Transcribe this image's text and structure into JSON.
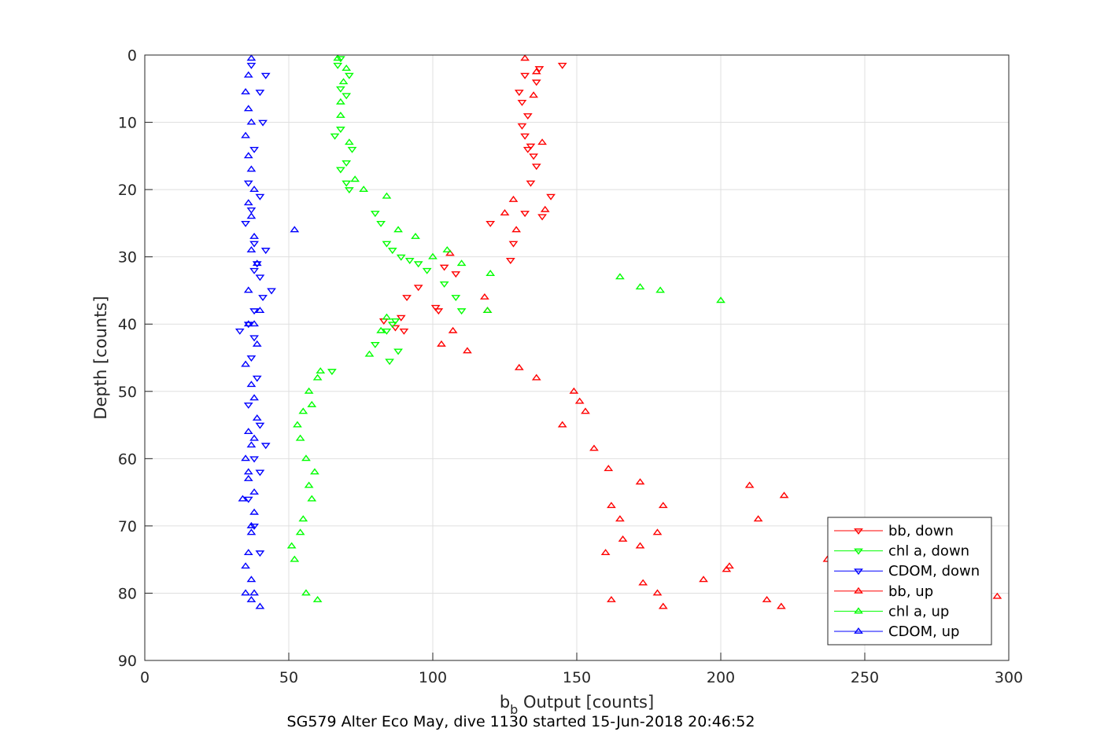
{
  "chart_data": {
    "type": "scatter",
    "xlabel": "b",
    "xlabel_sub": "b",
    "xlabel_rest": " Output [counts]",
    "ylabel": "Depth [counts]",
    "caption": "SG579 Alter Eco May, dive 1130 started 15-Jun-2018 20:46:52",
    "xlim": [
      0,
      300
    ],
    "ylim": [
      0,
      90
    ],
    "y_reversed": true,
    "grid": true,
    "legend_position": "bottom-right",
    "xticks": [
      "0",
      "50",
      "100",
      "150",
      "200",
      "250",
      "300"
    ],
    "yticks": [
      "0",
      "10",
      "20",
      "30",
      "40",
      "50",
      "60",
      "70",
      "80",
      "90"
    ],
    "colors": {
      "red": "#ff0000",
      "green": "#00ff00",
      "blue": "#0000ff"
    },
    "series": [
      {
        "name": "bb, down",
        "color": "#ff0000",
        "marker": "triangle-down",
        "x": [
          145,
          132,
          137,
          136,
          130,
          131,
          133,
          131,
          132,
          134,
          133,
          135,
          136,
          134,
          141,
          132,
          138,
          120,
          128,
          127,
          104,
          108,
          95,
          91,
          101,
          102,
          89,
          83,
          87,
          90
        ],
        "y": [
          1.5,
          3,
          2,
          4,
          5.5,
          7,
          9,
          10.5,
          12,
          13.5,
          14,
          15,
          16.5,
          19,
          21,
          23.5,
          24,
          25,
          28,
          30.5,
          31.5,
          32.5,
          34.5,
          36,
          37.5,
          38,
          39,
          39.5,
          40.5,
          41
        ]
      },
      {
        "name": "chl a, down",
        "color": "#00ff00",
        "marker": "triangle-down",
        "x": [
          68,
          71,
          67,
          68,
          70,
          68,
          66,
          72,
          70,
          68,
          70,
          71,
          80,
          82,
          84,
          86,
          89,
          92,
          95,
          98,
          104,
          108,
          110,
          87,
          86,
          84,
          80,
          88,
          85,
          65
        ],
        "y": [
          0.5,
          3,
          1.5,
          5,
          6,
          11,
          12,
          14,
          16,
          17,
          19,
          20,
          23.5,
          25,
          28,
          29,
          30,
          30.5,
          31,
          32,
          34,
          36,
          38,
          39.5,
          40,
          41,
          43,
          44,
          45.5,
          47
        ]
      },
      {
        "name": "CDOM, down",
        "color": "#0000ff",
        "marker": "triangle-down",
        "x": [
          37,
          42,
          40,
          41,
          38,
          36,
          40,
          37,
          35,
          38,
          42,
          39,
          38,
          40,
          44,
          41,
          38,
          36,
          33,
          38,
          37,
          39,
          36,
          40,
          42,
          38,
          40,
          36,
          38,
          40
        ],
        "y": [
          1.5,
          3,
          5.5,
          10,
          14,
          19,
          21,
          23,
          25,
          28,
          29,
          31,
          32,
          33,
          35,
          36,
          38,
          40,
          41,
          42,
          45,
          48,
          52,
          55,
          58,
          60,
          62,
          66,
          70,
          74
        ]
      },
      {
        "name": "bb, up",
        "color": "#ff0000",
        "marker": "triangle-up",
        "x": [
          132,
          136,
          135,
          138,
          139,
          128,
          125,
          129,
          118,
          119,
          106,
          107,
          103,
          112,
          130,
          136,
          149,
          151,
          153,
          145,
          156,
          161,
          172,
          162,
          165,
          166,
          160,
          173,
          178,
          180,
          162,
          210,
          202,
          222,
          213,
          203,
          178,
          180,
          172,
          194,
          216,
          221,
          296,
          237
        ],
        "y": [
          0.5,
          2.5,
          6,
          13,
          23,
          21.5,
          23.5,
          26,
          36,
          38,
          29.5,
          41,
          43,
          44,
          46.5,
          48,
          50,
          51.5,
          53,
          55,
          58.5,
          61.5,
          63.5,
          67,
          69,
          72,
          74,
          78.5,
          80,
          82,
          81,
          64,
          76.5,
          65.5,
          69,
          76,
          71,
          67,
          73,
          78,
          81,
          82,
          80.5,
          75
        ]
      },
      {
        "name": "chl a, up",
        "color": "#00ff00",
        "marker": "triangle-up",
        "x": [
          67,
          70,
          69,
          68,
          68,
          71,
          73,
          76,
          84,
          88,
          94,
          100,
          105,
          110,
          120,
          119,
          165,
          172,
          179,
          200,
          84,
          82,
          78,
          61,
          60,
          58,
          57,
          55,
          53,
          54,
          56,
          59,
          57,
          58,
          55,
          54,
          51,
          52,
          56,
          60
        ],
        "y": [
          0.5,
          2,
          4,
          7,
          9,
          13,
          18.5,
          20,
          21,
          26,
          27,
          30,
          29,
          31,
          32.5,
          38,
          33,
          34.5,
          35,
          36.5,
          39,
          41,
          44.5,
          47,
          48,
          52,
          50,
          53,
          55,
          57,
          60,
          62,
          64,
          66,
          69,
          71,
          73,
          75,
          80,
          81
        ]
      },
      {
        "name": "CDOM, up",
        "color": "#0000ff",
        "marker": "triangle-up",
        "x": [
          37,
          36,
          35,
          36,
          37,
          35,
          36,
          37,
          38,
          36,
          37,
          38,
          52,
          37,
          39,
          36,
          40,
          38,
          39,
          35,
          37,
          38,
          39,
          36,
          37,
          35,
          36,
          34,
          38,
          37,
          36,
          35,
          37,
          38,
          37,
          40,
          35,
          37,
          38,
          36,
          38,
          36
        ],
        "y": [
          0.5,
          3,
          5.5,
          8,
          10,
          12,
          15,
          17,
          20,
          22,
          24,
          27,
          26,
          29,
          31,
          35,
          38,
          40,
          43,
          46,
          49,
          51,
          54,
          56,
          58,
          60,
          63,
          66,
          68,
          71,
          74,
          76,
          78,
          80,
          81,
          82,
          80,
          70,
          65,
          62,
          57,
          40
        ]
      }
    ]
  }
}
